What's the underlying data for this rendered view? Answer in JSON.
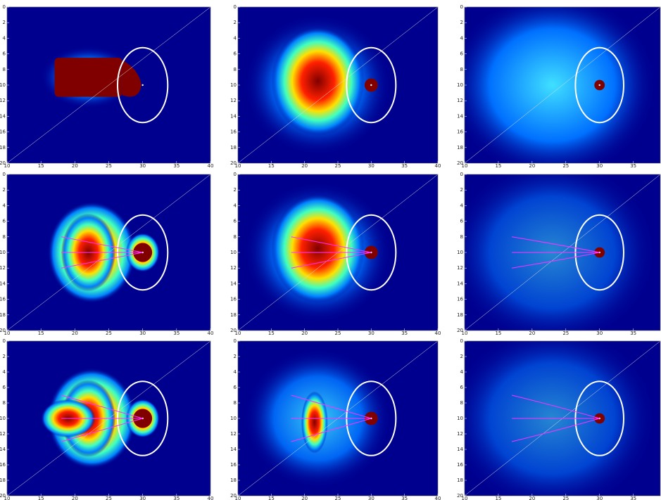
{
  "chart_data": [
    {
      "type": "heatmap",
      "y_inverted": true,
      "xlim": [
        10,
        40
      ],
      "ylim": [
        0,
        20
      ],
      "xticks": [
        10,
        15,
        20,
        25,
        30,
        35,
        40
      ],
      "yticks": [
        0,
        2,
        4,
        6,
        8,
        10,
        12,
        14,
        16,
        18,
        20
      ]
    },
    {
      "type": "heatmap",
      "y_inverted": true,
      "xlim": [
        10,
        40
      ],
      "ylim": [
        0,
        20
      ],
      "xticks": [
        10,
        15,
        20,
        25,
        30,
        35,
        40
      ],
      "yticks": [
        0,
        2,
        4,
        6,
        8,
        10,
        12,
        14,
        16,
        18,
        20
      ]
    },
    {
      "type": "heatmap",
      "y_inverted": true,
      "xlim": [
        10,
        39
      ],
      "ylim": [
        0,
        20
      ],
      "xticks": [
        10,
        15,
        20,
        25,
        30,
        35
      ],
      "yticks": [
        0,
        2,
        4,
        6,
        8,
        10,
        12,
        14,
        16,
        18,
        20
      ]
    },
    {
      "type": "heatmap",
      "y_inverted": true,
      "xlim": [
        10,
        40
      ],
      "ylim": [
        0,
        20
      ],
      "xticks": [
        10,
        15,
        20,
        25,
        30,
        35,
        40
      ],
      "yticks": [
        0,
        2,
        4,
        6,
        8,
        10,
        12,
        14,
        16,
        18,
        20
      ]
    },
    {
      "type": "heatmap",
      "y_inverted": true,
      "xlim": [
        10,
        40
      ],
      "ylim": [
        0,
        20
      ],
      "xticks": [
        10,
        15,
        20,
        25,
        30,
        35,
        40
      ],
      "yticks": [
        0,
        2,
        4,
        6,
        8,
        10,
        12,
        14,
        16,
        18,
        20
      ]
    },
    {
      "type": "heatmap",
      "y_inverted": true,
      "xlim": [
        10,
        39
      ],
      "ylim": [
        0,
        20
      ],
      "xticks": [
        10,
        15,
        20,
        25,
        30,
        35
      ],
      "yticks": [
        0,
        2,
        4,
        6,
        8,
        10,
        12,
        14,
        16,
        18,
        20
      ]
    },
    {
      "type": "heatmap",
      "y_inverted": true,
      "xlim": [
        10,
        40
      ],
      "ylim": [
        0,
        20
      ],
      "xticks": [
        10,
        15,
        20,
        25,
        30,
        35,
        40
      ],
      "yticks": [
        0,
        2,
        4,
        6,
        8,
        10,
        12,
        14,
        16,
        18,
        20
      ]
    },
    {
      "type": "heatmap",
      "y_inverted": true,
      "xlim": [
        10,
        40
      ],
      "ylim": [
        0,
        20
      ],
      "xticks": [
        10,
        15,
        20,
        25,
        30,
        35,
        40
      ],
      "yticks": [
        0,
        2,
        4,
        6,
        8,
        10,
        12,
        14,
        16,
        18,
        20
      ]
    },
    {
      "type": "heatmap",
      "y_inverted": true,
      "xlim": [
        10,
        39
      ],
      "ylim": [
        0,
        20
      ],
      "xticks": [
        10,
        15,
        20,
        25,
        30,
        35
      ],
      "yticks": [
        0,
        2,
        4,
        6,
        8,
        10,
        12,
        14,
        16,
        18,
        20
      ]
    }
  ]
}
